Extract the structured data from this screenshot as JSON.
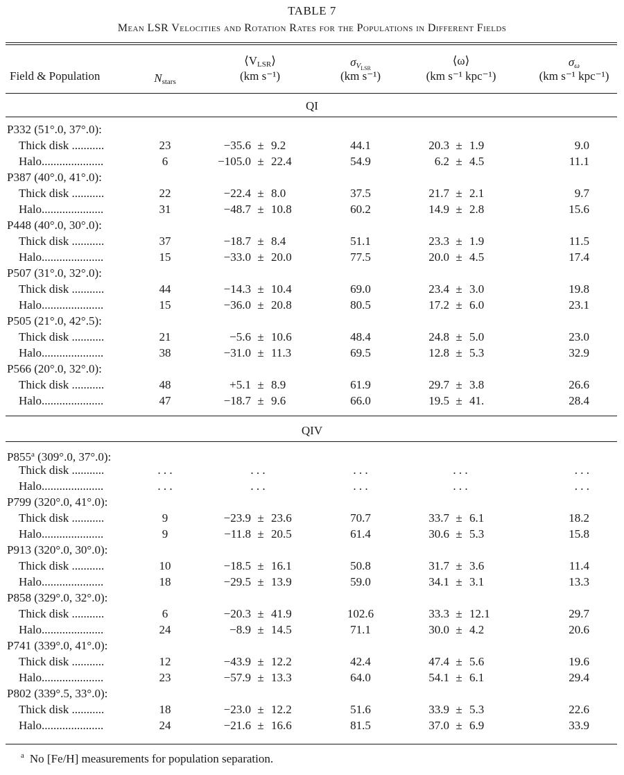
{
  "table": {
    "number": "TABLE 7",
    "caption": "Mean LSR Velocities and Rotation Rates for the Populations in Different Fields",
    "headers": {
      "field": "Field & Population",
      "nstars_base": "N",
      "nstars_sub": "stars",
      "vlsr_line1": "⟨V",
      "vlsr_sub": "LSR",
      "vlsr_close": "⟩",
      "vlsr_unit": "(km s⁻¹)",
      "sigv_base": "σ",
      "sigv_sub": "V",
      "sigv_subsub": "LSR",
      "sigv_unit": "(km s⁻¹)",
      "omega_line1": "⟨ω⟩",
      "omega_unit": "(km s⁻¹ kpc⁻¹)",
      "sigw_base": "σ",
      "sigw_sub": "ω",
      "sigw_unit": "(km s⁻¹ kpc⁻¹)"
    },
    "sections": [
      {
        "label": "QI",
        "fields": [
          {
            "name": "P332 (51°.0, 37°.0):",
            "rows": [
              {
                "pop": "Thick disk ...........",
                "n": "23",
                "v": "−35.6",
                "ve": "9.2",
                "sv": "44.1",
                "w": "20.3",
                "we": "1.9",
                "sw": "9.0"
              },
              {
                "pop": "Halo.....................",
                "n": "6",
                "v": "−105.0",
                "ve": "22.4",
                "sv": "54.9",
                "w": "6.2",
                "we": "4.5",
                "sw": "11.1"
              }
            ]
          },
          {
            "name": "P387 (40°.0, 41°.0):",
            "rows": [
              {
                "pop": "Thick disk ...........",
                "n": "22",
                "v": "−22.4",
                "ve": "8.0",
                "sv": "37.5",
                "w": "21.7",
                "we": "2.1",
                "sw": "9.7"
              },
              {
                "pop": "Halo.....................",
                "n": "31",
                "v": "−48.7",
                "ve": "10.8",
                "sv": "60.2",
                "w": "14.9",
                "we": "2.8",
                "sw": "15.6"
              }
            ]
          },
          {
            "name": "P448 (40°.0, 30°.0):",
            "rows": [
              {
                "pop": "Thick disk ...........",
                "n": "37",
                "v": "−18.7",
                "ve": "8.4",
                "sv": "51.1",
                "w": "23.3",
                "we": "1.9",
                "sw": "11.5"
              },
              {
                "pop": "Halo.....................",
                "n": "15",
                "v": "−33.0",
                "ve": "20.0",
                "sv": "77.5",
                "w": "20.0",
                "we": "4.5",
                "sw": "17.4"
              }
            ]
          },
          {
            "name": "P507 (31°.0, 32°.0):",
            "rows": [
              {
                "pop": "Thick disk ...........",
                "n": "44",
                "v": "−14.3",
                "ve": "10.4",
                "sv": "69.0",
                "w": "23.4",
                "we": "3.0",
                "sw": "19.8"
              },
              {
                "pop": "Halo.....................",
                "n": "15",
                "v": "−36.0",
                "ve": "20.8",
                "sv": "80.5",
                "w": "17.2",
                "we": "6.0",
                "sw": "23.1"
              }
            ]
          },
          {
            "name": "P505 (21°.0, 42°.5):",
            "rows": [
              {
                "pop": "Thick disk ...........",
                "n": "21",
                "v": "−5.6",
                "ve": "10.6",
                "sv": "48.4",
                "w": "24.8",
                "we": "5.0",
                "sw": "23.0"
              },
              {
                "pop": "Halo.....................",
                "n": "38",
                "v": "−31.0",
                "ve": "11.3",
                "sv": "69.5",
                "w": "12.8",
                "we": "5.3",
                "sw": "32.9"
              }
            ]
          },
          {
            "name": "P566 (20°.0, 32°.0):",
            "rows": [
              {
                "pop": "Thick disk ...........",
                "n": "48",
                "v": "+5.1",
                "ve": "8.9",
                "sv": "61.9",
                "w": "29.7",
                "we": "3.8",
                "sw": "26.6"
              },
              {
                "pop": "Halo.....................",
                "n": "47",
                "v": "−18.7",
                "ve": "9.6",
                "sv": "66.0",
                "w": "19.5",
                "we": "41.",
                "sw": "28.4"
              }
            ]
          }
        ]
      },
      {
        "label": "QIV",
        "fields": [
          {
            "name": "P855",
            "name_sup": "a",
            "name_rest": " (309°.0, 37°.0):",
            "rows": [
              {
                "pop": "Thick disk ...........",
                "n": ". . .",
                "v": ". . .",
                "ve": "",
                "sv": ". . .",
                "w": ". . .",
                "we": "",
                "sw": ". . ."
              },
              {
                "pop": "Halo.....................",
                "n": ". . .",
                "v": ". . .",
                "ve": "",
                "sv": ". . .",
                "w": ". . .",
                "we": "",
                "sw": ". . ."
              }
            ]
          },
          {
            "name": "P799 (320°.0, 41°.0):",
            "rows": [
              {
                "pop": "Thick disk ...........",
                "n": "9",
                "v": "−23.9",
                "ve": "23.6",
                "sv": "70.7",
                "w": "33.7",
                "we": "6.1",
                "sw": "18.2"
              },
              {
                "pop": "Halo.....................",
                "n": "9",
                "v": "−11.8",
                "ve": "20.5",
                "sv": "61.4",
                "w": "30.6",
                "we": "5.3",
                "sw": "15.8"
              }
            ]
          },
          {
            "name": "P913 (320°.0, 30°.0):",
            "rows": [
              {
                "pop": "Thick disk ...........",
                "n": "10",
                "v": "−18.5",
                "ve": "16.1",
                "sv": "50.8",
                "w": "31.7",
                "we": "3.6",
                "sw": "11.4"
              },
              {
                "pop": "Halo.....................",
                "n": "18",
                "v": "−29.5",
                "ve": "13.9",
                "sv": "59.0",
                "w": "34.1",
                "we": "3.1",
                "sw": "13.3"
              }
            ]
          },
          {
            "name": "P858 (329°.0, 32°.0):",
            "rows": [
              {
                "pop": "Thick disk ...........",
                "n": "6",
                "v": "−20.3",
                "ve": "41.9",
                "sv": "102.6",
                "w": "33.3",
                "we": "12.1",
                "sw": "29.7"
              },
              {
                "pop": "Halo.....................",
                "n": "24",
                "v": "−8.9",
                "ve": "14.5",
                "sv": "71.1",
                "w": "30.0",
                "we": "4.2",
                "sw": "20.6"
              }
            ]
          },
          {
            "name": "P741 (339°.0, 41°.0):",
            "rows": [
              {
                "pop": "Thick disk ...........",
                "n": "12",
                "v": "−43.9",
                "ve": "12.2",
                "sv": "42.4",
                "w": "47.4",
                "we": "5.6",
                "sw": "19.6"
              },
              {
                "pop": "Halo.....................",
                "n": "23",
                "v": "−57.9",
                "ve": "13.3",
                "sv": "64.0",
                "w": "54.1",
                "we": "6.1",
                "sw": "29.4"
              }
            ]
          },
          {
            "name": "P802 (339°.5, 33°.0):",
            "rows": [
              {
                "pop": "Thick disk ...........",
                "n": "18",
                "v": "−23.0",
                "ve": "12.2",
                "sv": "51.6",
                "w": "33.9",
                "we": "5.3",
                "sw": "22.6"
              },
              {
                "pop": "Halo.....................",
                "n": "24",
                "v": "−21.6",
                "ve": "16.6",
                "sv": "81.5",
                "w": "37.0",
                "we": "6.9",
                "sw": "33.9"
              }
            ]
          }
        ]
      }
    ],
    "pm": "±",
    "footnote_mark": "a",
    "footnote_text": "No [Fe/H] measurements for population separation."
  }
}
